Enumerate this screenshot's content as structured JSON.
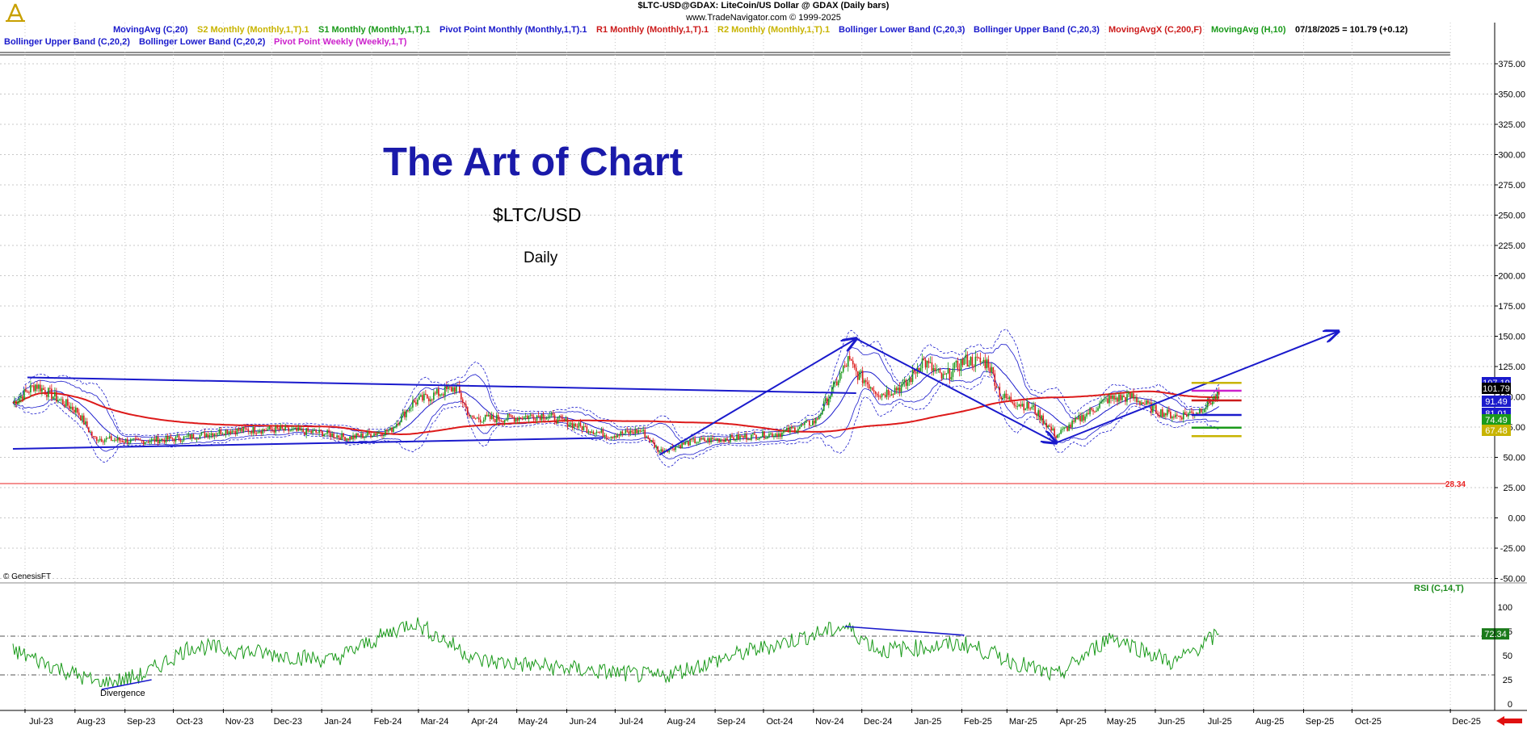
{
  "header": {
    "line1": "$LTC-USD@GDAX:  LiteCoin/US Dollar @ GDAX  (Daily bars)",
    "line2": "www.TradeNavigator.com © 1999-2025"
  },
  "legend_row1": [
    {
      "text": "MovingAvg (C,20)",
      "color": "#1a1acc"
    },
    {
      "text": "S2 Monthly (Monthly,1,T).1",
      "color": "#c8b400"
    },
    {
      "text": "S1 Monthly (Monthly,1,T).1",
      "color": "#1a9a1a"
    },
    {
      "text": "Pivot Point Monthly (Monthly,1,T).1",
      "color": "#1a1acc"
    },
    {
      "text": "R1 Monthly (Monthly,1,T).1",
      "color": "#cc1a1a"
    },
    {
      "text": "R2 Monthly (Monthly,1,T).1",
      "color": "#c8b400"
    },
    {
      "text": "Bollinger Lower Band (C,20,3)",
      "color": "#1a1acc"
    },
    {
      "text": "Bollinger Upper Band (C,20,3)",
      "color": "#1a1acc"
    },
    {
      "text": "MovingAvgX (C,200,F)",
      "color": "#cc1a1a"
    },
    {
      "text": "MovingAvg (H,10)",
      "color": "#1a9a1a"
    },
    {
      "text": "07/18/2025 = 101.79 (+0.12)",
      "color": "#000000"
    }
  ],
  "legend_row2": [
    {
      "text": "Bollinger Upper Band (C,20,2)",
      "color": "#1a1acc"
    },
    {
      "text": "Bollinger Lower Band (C,20,2)",
      "color": "#1a1acc"
    },
    {
      "text": "Pivot Point Weekly (Weekly,1,T)",
      "color": "#cc22cc"
    }
  ],
  "annotations": {
    "title": "The Art of Chart",
    "symbol": "$LTC/USD",
    "period": "Daily",
    "copyright": "© GenesisFT",
    "divergence": "Divergence"
  },
  "price_tags": [
    {
      "text": "107.19",
      "bg": "#1a1acc",
      "value": 107.19
    },
    {
      "text": "101.79",
      "bg": "#000000",
      "value": 101.79
    },
    {
      "text": "91.49",
      "bg": "#1a1acc",
      "value": 91.49
    },
    {
      "text": "81.01",
      "bg": "#1a1acc",
      "value": 81.01
    },
    {
      "text": "74.49",
      "bg": "#1a9a1a",
      "value": 74.49
    },
    {
      "text": "67.48",
      "bg": "#c8b400",
      "value": 67.48
    }
  ],
  "level_line": {
    "text": "28.34",
    "value": 28.34,
    "color": "#e82020"
  },
  "rsi": {
    "label": "RSI (C,14,T)",
    "last": "72.34",
    "ticks": [
      "100",
      "75",
      "50",
      "25",
      "0"
    ],
    "upper": 70,
    "lower": 30
  },
  "colors": {
    "up_candle": "#1a9a1a",
    "down_candle": "#dd1a1a",
    "bollinger": "#1a1acc",
    "ma200": "#dd1a1a",
    "trendline": "#1a1acc",
    "rsi_line": "#1a9a1a",
    "grid": "#c8c8c8"
  },
  "chart_data": {
    "type": "candlestick",
    "title": "$LTC-USD@GDAX:  LiteCoin/US Dollar @ GDAX  (Daily bars)",
    "ylim": [
      -55,
      385
    ],
    "y_ticks": [
      "375.00",
      "350.00",
      "325.00",
      "300.00",
      "275.00",
      "250.00",
      "225.00",
      "200.00",
      "175.00",
      "150.00",
      "125.00",
      "100.00",
      "75.00",
      "50.00",
      "25.00",
      "0.00",
      "-25.00",
      "-50.00"
    ],
    "x_ticks": [
      "Jul-23",
      "Aug-23",
      "Sep-23",
      "Oct-23",
      "Nov-23",
      "Dec-23",
      "Jan-24",
      "Feb-24",
      "Mar-24",
      "Apr-24",
      "May-24",
      "Jun-24",
      "Jul-24",
      "Aug-24",
      "Sep-24",
      "Oct-24",
      "Nov-24",
      "Dec-24",
      "Jan-25",
      "Feb-25",
      "Mar-25",
      "Apr-25",
      "May-25",
      "Jun-25",
      "Jul-25",
      "Aug-25",
      "Sep-25",
      "Oct-25",
      "Dec-25"
    ],
    "grid": true,
    "price_anchors": [
      {
        "date": "2023-07-01",
        "close": 95
      },
      {
        "date": "2023-07-15",
        "close": 110
      },
      {
        "date": "2023-08-10",
        "close": 88
      },
      {
        "date": "2023-08-20",
        "close": 66
      },
      {
        "date": "2023-09-15",
        "close": 63
      },
      {
        "date": "2023-10-15",
        "close": 66
      },
      {
        "date": "2023-11-10",
        "close": 72
      },
      {
        "date": "2023-12-10",
        "close": 73
      },
      {
        "date": "2024-01-10",
        "close": 70
      },
      {
        "date": "2024-01-25",
        "close": 66
      },
      {
        "date": "2024-02-20",
        "close": 72
      },
      {
        "date": "2024-03-05",
        "close": 95
      },
      {
        "date": "2024-03-15",
        "close": 100
      },
      {
        "date": "2024-04-01",
        "close": 108
      },
      {
        "date": "2024-04-10",
        "close": 82
      },
      {
        "date": "2024-05-01",
        "close": 82
      },
      {
        "date": "2024-05-25",
        "close": 85
      },
      {
        "date": "2024-06-15",
        "close": 76
      },
      {
        "date": "2024-07-05",
        "close": 68
      },
      {
        "date": "2024-07-25",
        "close": 72
      },
      {
        "date": "2024-08-05",
        "close": 55
      },
      {
        "date": "2024-08-25",
        "close": 63
      },
      {
        "date": "2024-09-20",
        "close": 66
      },
      {
        "date": "2024-10-20",
        "close": 70
      },
      {
        "date": "2024-11-10",
        "close": 80
      },
      {
        "date": "2024-11-30",
        "close": 130
      },
      {
        "date": "2024-12-05",
        "close": 120
      },
      {
        "date": "2024-12-20",
        "close": 102
      },
      {
        "date": "2025-01-05",
        "close": 110
      },
      {
        "date": "2025-01-15",
        "close": 130
      },
      {
        "date": "2025-01-28",
        "close": 115
      },
      {
        "date": "2025-02-10",
        "close": 130
      },
      {
        "date": "2025-02-25",
        "close": 128
      },
      {
        "date": "2025-03-05",
        "close": 100
      },
      {
        "date": "2025-03-25",
        "close": 90
      },
      {
        "date": "2025-04-08",
        "close": 68
      },
      {
        "date": "2025-04-25",
        "close": 84
      },
      {
        "date": "2025-05-10",
        "close": 98
      },
      {
        "date": "2025-05-25",
        "close": 100
      },
      {
        "date": "2025-06-10",
        "close": 88
      },
      {
        "date": "2025-06-22",
        "close": 84
      },
      {
        "date": "2025-07-05",
        "close": 88
      },
      {
        "date": "2025-07-18",
        "close": 101.79
      }
    ],
    "rsi_anchors": [
      {
        "date": "2023-07-01",
        "value": 55
      },
      {
        "date": "2023-08-25",
        "value": 20
      },
      {
        "date": "2023-09-20",
        "value": 30
      },
      {
        "date": "2023-10-20",
        "value": 60
      },
      {
        "date": "2024-01-15",
        "value": 45
      },
      {
        "date": "2024-03-05",
        "value": 85
      },
      {
        "date": "2024-04-15",
        "value": 45
      },
      {
        "date": "2024-06-20",
        "value": 35
      },
      {
        "date": "2024-08-05",
        "value": 28
      },
      {
        "date": "2024-09-20",
        "value": 50
      },
      {
        "date": "2024-11-28",
        "value": 80
      },
      {
        "date": "2024-12-20",
        "value": 55
      },
      {
        "date": "2025-02-10",
        "value": 62
      },
      {
        "date": "2025-04-08",
        "value": 28
      },
      {
        "date": "2025-05-12",
        "value": 70
      },
      {
        "date": "2025-06-20",
        "value": 42
      },
      {
        "date": "2025-07-18",
        "value": 72.34
      }
    ],
    "trendlines": [
      {
        "from": {
          "date": "2023-07-10",
          "value": 116
        },
        "to": {
          "date": "2024-12-05",
          "value": 103
        }
      },
      {
        "from": {
          "date": "2023-07-01",
          "value": 57
        },
        "to": {
          "date": "2024-07-01",
          "value": 66
        }
      },
      {
        "from": {
          "date": "2024-08-05",
          "value": 52
        },
        "to": {
          "date": "2024-12-05",
          "value": 148
        },
        "arrow": true
      },
      {
        "from": {
          "date": "2024-12-05",
          "value": 148
        },
        "to": {
          "date": "2025-04-08",
          "value": 62
        },
        "arrow": true
      },
      {
        "from": {
          "date": "2025-04-08",
          "value": 62
        },
        "to": {
          "date": "2025-09-30",
          "value": 154
        },
        "arrow": true
      }
    ],
    "rsi_trendlines": [
      {
        "from": {
          "date": "2023-08-25",
          "value": 15
        },
        "to": {
          "date": "2023-09-25",
          "value": 25
        }
      },
      {
        "from": {
          "date": "2024-11-28",
          "value": 80
        },
        "to": {
          "date": "2025-02-10",
          "value": 71
        }
      }
    ],
    "pivot_levels": [
      {
        "name": "R2 Monthly",
        "value": 111.5,
        "color": "#c8b400"
      },
      {
        "name": "R1 Monthly",
        "value": 97,
        "color": "#cc1a1a"
      },
      {
        "name": "Pivot Point Monthly",
        "value": 85,
        "color": "#1a1acc"
      },
      {
        "name": "S1 Monthly",
        "value": 74.49,
        "color": "#1a9a1a"
      },
      {
        "name": "S2 Monthly",
        "value": 67.48,
        "color": "#c8b400"
      },
      {
        "name": "Pivot Point Weekly",
        "value": 105,
        "color": "#cc22cc"
      }
    ]
  }
}
